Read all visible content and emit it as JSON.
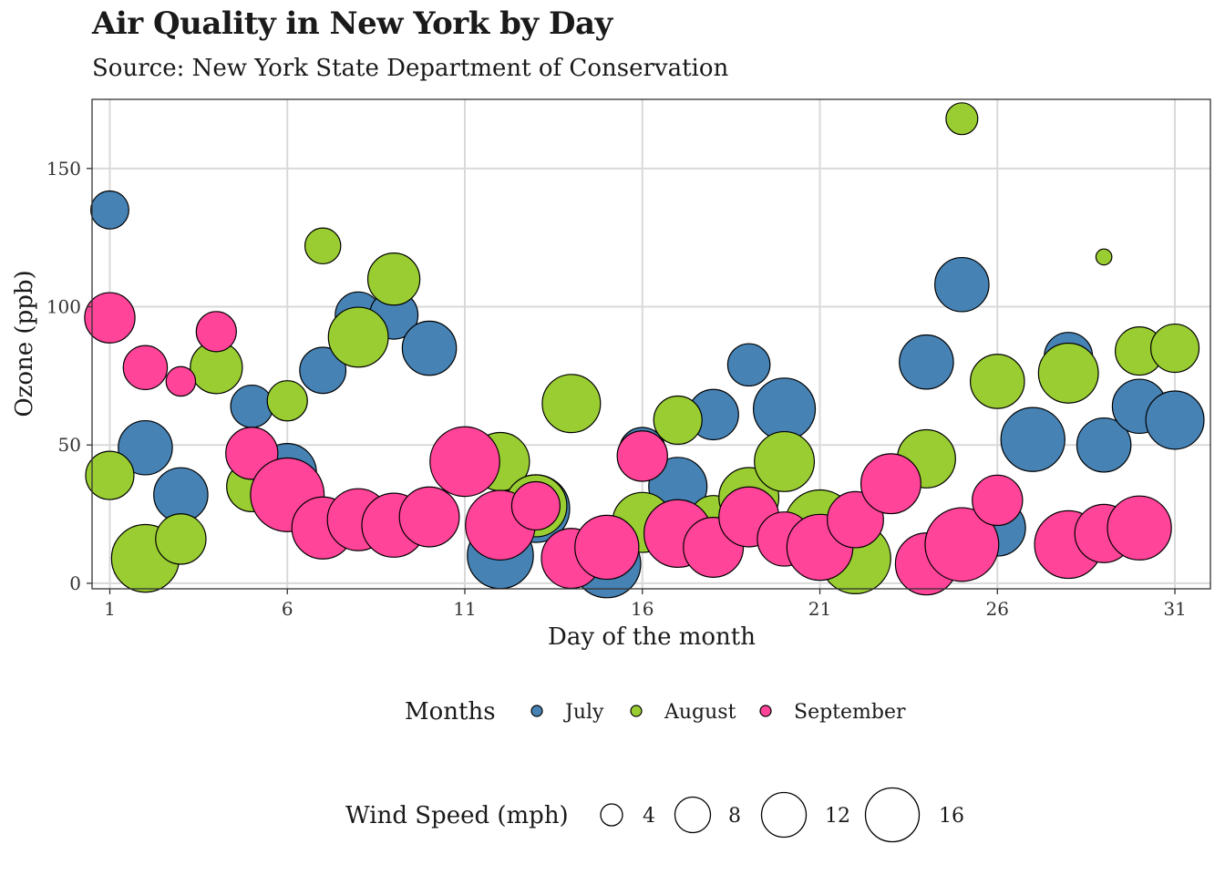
{
  "title": "Air Quality in New York by Day",
  "subtitle": "Source: New York State Department of Conservation",
  "colors": {
    "July": "#4682b4",
    "August": "#9acd32",
    "September": "#ff4499",
    "grid": "#d9d9d9",
    "outline": "#000000"
  },
  "legend": {
    "months_title": "Months",
    "size_title": "Wind Speed (mph)",
    "size_breaks": [
      "4",
      "8",
      "12",
      "16"
    ]
  },
  "chart_data": {
    "type": "scatter",
    "title": "Air Quality in New York by Day",
    "subtitle": "Source: New York State Department of Conservation",
    "xlabel": "Day of the month",
    "ylabel": "Ozone (ppb)",
    "xlim": [
      0.5,
      32
    ],
    "ylim": [
      -2,
      175
    ],
    "x_ticks": [
      1,
      6,
      11,
      16,
      21,
      26,
      31
    ],
    "y_ticks": [
      0,
      50,
      100,
      150
    ],
    "grid": true,
    "size_variable": "Wind Speed (mph)",
    "series": [
      {
        "name": "July",
        "points": [
          {
            "day": 1,
            "ozone": 135,
            "wind": 8.0
          },
          {
            "day": 2,
            "ozone": 49,
            "wind": 12.6
          },
          {
            "day": 3,
            "ozone": 32,
            "wind": 12.6
          },
          {
            "day": 5,
            "ozone": 64,
            "wind": 9.2
          },
          {
            "day": 6,
            "ozone": 40,
            "wind": 13.8
          },
          {
            "day": 7,
            "ozone": 77,
            "wind": 10.3
          },
          {
            "day": 8,
            "ozone": 97,
            "wind": 10.3
          },
          {
            "day": 9,
            "ozone": 97,
            "wind": 10.9
          },
          {
            "day": 10,
            "ozone": 85,
            "wind": 12.6
          },
          {
            "day": 12,
            "ozone": 10,
            "wind": 16.1
          },
          {
            "day": 13,
            "ozone": 27,
            "wind": 16.6
          },
          {
            "day": 15,
            "ozone": 7,
            "wind": 16.6
          },
          {
            "day": 16,
            "ozone": 48,
            "wind": 10.3
          },
          {
            "day": 17,
            "ozone": 35,
            "wind": 13.8
          },
          {
            "day": 18,
            "ozone": 61,
            "wind": 11.5
          },
          {
            "day": 19,
            "ozone": 79,
            "wind": 9.2
          },
          {
            "day": 20,
            "ozone": 63,
            "wind": 14.9
          },
          {
            "day": 24,
            "ozone": 80,
            "wind": 12.6
          },
          {
            "day": 25,
            "ozone": 108,
            "wind": 12.6
          },
          {
            "day": 26,
            "ozone": 20,
            "wind": 13.2
          },
          {
            "day": 27,
            "ozone": 52,
            "wind": 15.5
          },
          {
            "day": 28,
            "ozone": 82,
            "wind": 10.9
          },
          {
            "day": 29,
            "ozone": 50,
            "wind": 12.6
          },
          {
            "day": 30,
            "ozone": 64,
            "wind": 12.6
          },
          {
            "day": 31,
            "ozone": 59,
            "wind": 13.8
          }
        ]
      },
      {
        "name": "August",
        "points": [
          {
            "day": 1,
            "ozone": 39,
            "wind": 10.9
          },
          {
            "day": 2,
            "ozone": 9,
            "wind": 16.6
          },
          {
            "day": 3,
            "ozone": 16,
            "wind": 11.5
          },
          {
            "day": 4,
            "ozone": 78,
            "wind": 12.0
          },
          {
            "day": 5,
            "ozone": 35,
            "wind": 11.5
          },
          {
            "day": 6,
            "ozone": 66,
            "wind": 8.6
          },
          {
            "day": 7,
            "ozone": 122,
            "wind": 7.4
          },
          {
            "day": 8,
            "ozone": 89,
            "wind": 14.3
          },
          {
            "day": 9,
            "ozone": 110,
            "wind": 12.0
          },
          {
            "day": 12,
            "ozone": 44,
            "wind": 13.8
          },
          {
            "day": 13,
            "ozone": 28,
            "wind": 14.9
          },
          {
            "day": 14,
            "ozone": 65,
            "wind": 13.8
          },
          {
            "day": 16,
            "ozone": 22,
            "wind": 14.3
          },
          {
            "day": 17,
            "ozone": 59,
            "wind": 10.9
          },
          {
            "day": 18,
            "ozone": 23,
            "wind": 10.9
          },
          {
            "day": 19,
            "ozone": 31,
            "wind": 14.3
          },
          {
            "day": 20,
            "ozone": 44,
            "wind": 14.3
          },
          {
            "day": 21,
            "ozone": 21,
            "wind": 17.5
          },
          {
            "day": 22,
            "ozone": 9,
            "wind": 17.5
          },
          {
            "day": 24,
            "ozone": 45,
            "wind": 13.8
          },
          {
            "day": 25,
            "ozone": 168,
            "wind": 6.3
          },
          {
            "day": 26,
            "ozone": 73,
            "wind": 12.6
          },
          {
            "day": 28,
            "ozone": 76,
            "wind": 14.3
          },
          {
            "day": 29,
            "ozone": 118,
            "wind": 2.3
          },
          {
            "day": 30,
            "ozone": 84,
            "wind": 10.9
          },
          {
            "day": 31,
            "ozone": 85,
            "wind": 10.9
          }
        ]
      },
      {
        "name": "September",
        "points": [
          {
            "day": 1,
            "ozone": 96,
            "wind": 11.5
          },
          {
            "day": 2,
            "ozone": 78,
            "wind": 9.7
          },
          {
            "day": 3,
            "ozone": 73,
            "wind": 5.7
          },
          {
            "day": 4,
            "ozone": 91,
            "wind": 8.6
          },
          {
            "day": 5,
            "ozone": 47,
            "wind": 12.0
          },
          {
            "day": 6,
            "ozone": 32,
            "wind": 18.4
          },
          {
            "day": 7,
            "ozone": 20,
            "wind": 14.9
          },
          {
            "day": 8,
            "ozone": 23,
            "wind": 14.9
          },
          {
            "day": 9,
            "ozone": 21,
            "wind": 15.5
          },
          {
            "day": 10,
            "ozone": 24,
            "wind": 14.3
          },
          {
            "day": 11,
            "ozone": 44,
            "wind": 17.2
          },
          {
            "day": 12,
            "ozone": 21,
            "wind": 17.2
          },
          {
            "day": 13,
            "ozone": 28,
            "wind": 10.9
          },
          {
            "day": 14,
            "ozone": 9,
            "wind": 14.3
          },
          {
            "day": 15,
            "ozone": 13,
            "wind": 15.5
          },
          {
            "day": 16,
            "ozone": 46,
            "wind": 11.5
          },
          {
            "day": 17,
            "ozone": 18,
            "wind": 16.6
          },
          {
            "day": 18,
            "ozone": 13,
            "wind": 14.3
          },
          {
            "day": 19,
            "ozone": 24,
            "wind": 14.3
          },
          {
            "day": 20,
            "ozone": 16,
            "wind": 12.6
          },
          {
            "day": 21,
            "ozone": 13,
            "wind": 16.1
          },
          {
            "day": 22,
            "ozone": 23,
            "wind": 13.2
          },
          {
            "day": 23,
            "ozone": 36,
            "wind": 14.3
          },
          {
            "day": 24,
            "ozone": 7,
            "wind": 14.9
          },
          {
            "day": 25,
            "ozone": 14,
            "wind": 18.4
          },
          {
            "day": 26,
            "ozone": 30,
            "wind": 11.5
          },
          {
            "day": 28,
            "ozone": 14,
            "wind": 16.6
          },
          {
            "day": 29,
            "ozone": 18,
            "wind": 13.8
          },
          {
            "day": 30,
            "ozone": 20,
            "wind": 15.5
          }
        ]
      }
    ]
  }
}
